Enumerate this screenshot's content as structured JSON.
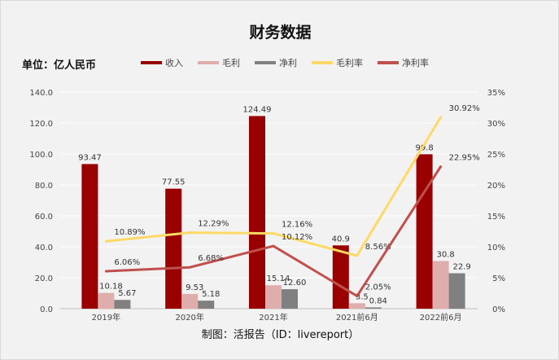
{
  "chart_data": {
    "type": "bar",
    "title": "财务数据",
    "unit_label": "单位：亿人民币",
    "footer": "制图：活报告（ID：livereport）",
    "categories": [
      "2019年",
      "2020年",
      "2021年",
      "2021前6月",
      "2022前6月"
    ],
    "y_left": {
      "range": [
        0,
        140
      ],
      "ticks": [
        "0.0",
        "20.0",
        "40.0",
        "60.0",
        "80.0",
        "100.0",
        "120.0",
        "140.0"
      ]
    },
    "y_right": {
      "range": [
        0,
        35
      ],
      "ticks": [
        "0%",
        "5%",
        "10%",
        "15%",
        "20%",
        "25%",
        "30%",
        "35%"
      ]
    },
    "grid": true,
    "legend_position": "top",
    "bar_series": [
      {
        "name": "收入",
        "color": "#990000",
        "values": [
          93.47,
          77.55,
          124.49,
          40.9,
          99.8
        ],
        "labels": [
          "93.47",
          "77.55",
          "124.49",
          "40.9",
          "99.8"
        ]
      },
      {
        "name": "毛利",
        "color": "#e0adad",
        "values": [
          10.18,
          9.53,
          15.14,
          3.5,
          30.8
        ],
        "labels": [
          "10.18",
          "9.53",
          "15.14",
          "3.5",
          "30.8"
        ]
      },
      {
        "name": "净利",
        "color": "#808080",
        "values": [
          5.67,
          5.18,
          12.6,
          0.84,
          22.9
        ],
        "labels": [
          "5.67",
          "5.18",
          "12.60",
          "0.84",
          "22.9"
        ]
      }
    ],
    "line_series": [
      {
        "name": "毛利率",
        "color": "#ffd966",
        "values": [
          10.89,
          12.29,
          12.16,
          8.56,
          30.92
        ],
        "labels": [
          "10.89%",
          "12.29%",
          "12.16%",
          "8.56%",
          "30.92%"
        ]
      },
      {
        "name": "净利率",
        "color": "#c0504d",
        "values": [
          6.06,
          6.68,
          10.12,
          2.05,
          22.95
        ],
        "labels": [
          "6.06%",
          "6.68%",
          "10.12%",
          "2.05%",
          "22.95%"
        ]
      }
    ]
  }
}
